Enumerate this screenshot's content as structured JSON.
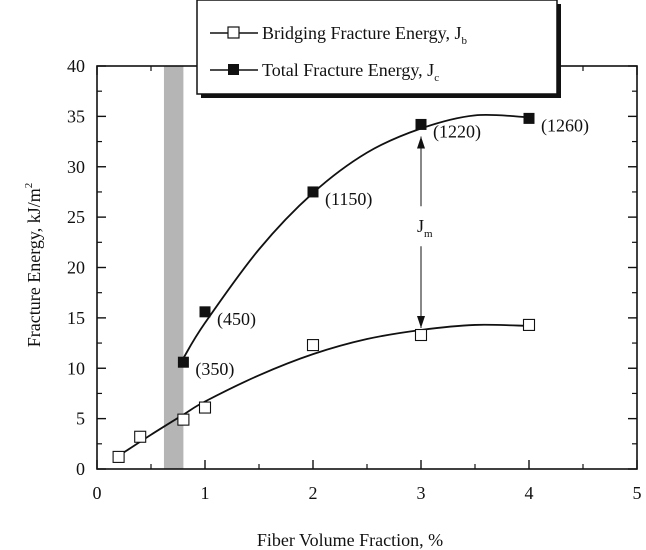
{
  "chart_data": {
    "type": "scatter",
    "xlabel": "Fiber Volume Fraction, %",
    "ylabel": "Fracture Energy, kJ/m",
    "ylabel_sup": "2",
    "xlim": [
      0,
      5
    ],
    "ylim": [
      0,
      40
    ],
    "x_ticks": [
      "0",
      "1",
      "2",
      "3",
      "4",
      "5"
    ],
    "y_ticks": [
      "0",
      "5",
      "10",
      "15",
      "20",
      "25",
      "30",
      "35",
      "40"
    ],
    "grid": false,
    "legend_position": "top-right",
    "shaded_band": {
      "x_range": [
        0.62,
        0.8
      ],
      "color": "#b5b5b5"
    },
    "series": [
      {
        "name": "Bridging Fracture Energy, J",
        "name_sub": "b",
        "marker": "open-square",
        "points": [
          {
            "x": 0.2,
            "y": 1.2
          },
          {
            "x": 0.4,
            "y": 3.2
          },
          {
            "x": 0.8,
            "y": 4.9
          },
          {
            "x": 1.0,
            "y": 6.1
          },
          {
            "x": 2.0,
            "y": 12.3
          },
          {
            "x": 3.0,
            "y": 13.3
          },
          {
            "x": 4.0,
            "y": 14.3
          }
        ],
        "fit": [
          {
            "x": 0.2,
            "y": 1.3
          },
          {
            "x": 0.5,
            "y": 3.4
          },
          {
            "x": 0.8,
            "y": 5.4
          },
          {
            "x": 1.0,
            "y": 6.7
          },
          {
            "x": 1.5,
            "y": 9.3
          },
          {
            "x": 2.0,
            "y": 11.4
          },
          {
            "x": 2.5,
            "y": 12.9
          },
          {
            "x": 3.0,
            "y": 13.8
          },
          {
            "x": 3.5,
            "y": 14.3
          },
          {
            "x": 4.0,
            "y": 14.2
          }
        ]
      },
      {
        "name": "Total Fracture Energy, J",
        "name_sub": "c",
        "marker": "filled-square",
        "points": [
          {
            "x": 0.8,
            "y": 10.6,
            "label": "(350)"
          },
          {
            "x": 1.0,
            "y": 15.6,
            "label": "(450)"
          },
          {
            "x": 2.0,
            "y": 27.5,
            "label": "(1150)"
          },
          {
            "x": 3.0,
            "y": 34.2,
            "label": "(1220)"
          },
          {
            "x": 4.0,
            "y": 34.8,
            "label": "(1260)"
          }
        ],
        "fit": [
          {
            "x": 0.8,
            "y": 11.0
          },
          {
            "x": 1.0,
            "y": 14.5
          },
          {
            "x": 1.5,
            "y": 21.8
          },
          {
            "x": 2.0,
            "y": 27.4
          },
          {
            "x": 2.5,
            "y": 31.4
          },
          {
            "x": 3.0,
            "y": 33.8
          },
          {
            "x": 3.5,
            "y": 35.1
          },
          {
            "x": 4.0,
            "y": 34.9
          }
        ]
      }
    ],
    "annotations": [
      {
        "text": "J",
        "sub": "m",
        "arrow_x": 3.0,
        "from_y": 33.8,
        "to_y": 13.8
      }
    ]
  }
}
